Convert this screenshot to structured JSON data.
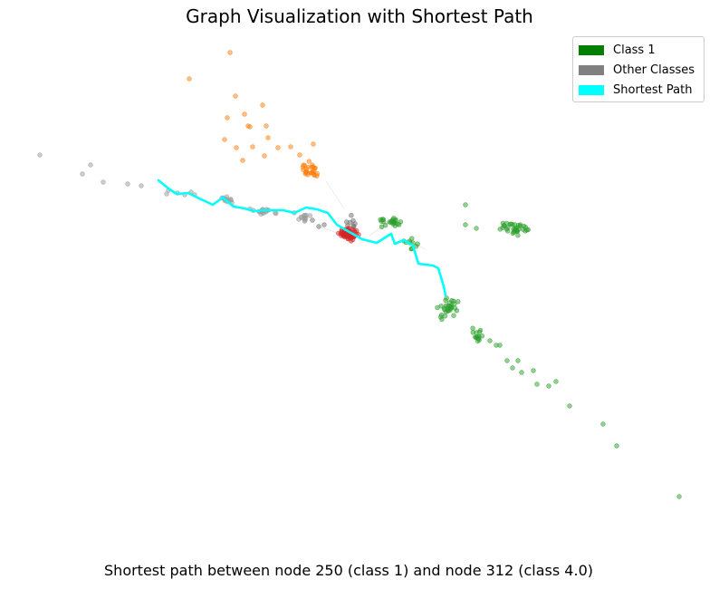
{
  "title": "Graph Visualization with Shortest Path",
  "caption": "Shortest path between node 250 (class 1) and node 312 (class 4.0)",
  "legend": [
    {
      "label": "Class 1",
      "color": "#008000"
    },
    {
      "label": "Other Classes",
      "color": "#808080"
    },
    {
      "label": "Shortest Path",
      "color": "#00ffff"
    }
  ],
  "colors": {
    "green": "#2ca02c",
    "gray": "#9a9a9a",
    "dark_gray": "#6f6f6f",
    "orange": "#ff7f0e",
    "red": "#d62728",
    "path": "#00ffff"
  }
}
